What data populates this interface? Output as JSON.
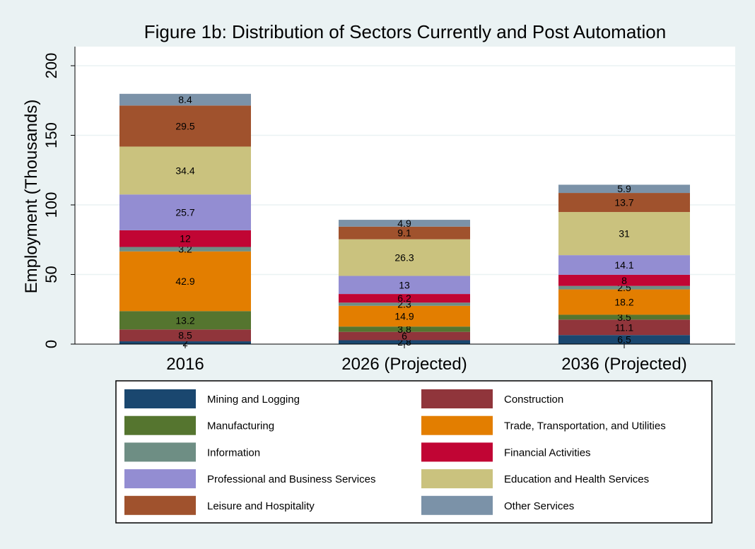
{
  "chart_data": {
    "type": "bar",
    "stacked": true,
    "title": "Figure 1b: Distribution of Sectors Currently and Post Automation",
    "ylabel": "Employment (Thousands)",
    "xlabel": "",
    "ylim": [
      0,
      200
    ],
    "yticks": [
      0,
      50,
      100,
      150,
      200
    ],
    "grid": true,
    "legend_position": "bottom",
    "categories": [
      "2016",
      "2026 (Projected)",
      "2036 (Projected)"
    ],
    "series": [
      {
        "name": "Mining and Logging",
        "color": "#1a476f",
        "values": [
          2,
          2.8,
          6.5
        ],
        "labels": [
          "2",
          "2.8",
          "6.5"
        ]
      },
      {
        "name": "Construction",
        "color": "#90353b",
        "values": [
          8.5,
          6,
          11.1
        ],
        "labels": [
          "8.5",
          "6",
          "11.1"
        ]
      },
      {
        "name": "Manufacturing",
        "color": "#55752f",
        "values": [
          13.2,
          3.8,
          3.5
        ],
        "labels": [
          "13.2",
          "3.8",
          "3.5"
        ]
      },
      {
        "name": "Trade, Transportation, and Utilities",
        "color": "#e37e00",
        "values": [
          42.9,
          14.9,
          18.2
        ],
        "labels": [
          "42.9",
          "14.9",
          "18.2"
        ]
      },
      {
        "name": "Information",
        "color": "#6e8e84",
        "values": [
          3.2,
          2.3,
          2.5
        ],
        "labels": [
          "3.2",
          "2.3",
          "2.5"
        ]
      },
      {
        "name": "Financial Activities",
        "color": "#c10534",
        "values": [
          12,
          6.2,
          8
        ],
        "labels": [
          "12",
          "6.2",
          "8"
        ]
      },
      {
        "name": "Professional and Business Services",
        "color": "#938dd2",
        "values": [
          25.7,
          13,
          14.1
        ],
        "labels": [
          "25.7",
          "13",
          "14.1"
        ]
      },
      {
        "name": "Education and Health Services",
        "color": "#cac27e",
        "values": [
          34.4,
          26.3,
          31
        ],
        "labels": [
          "34.4",
          "26.3",
          "31"
        ]
      },
      {
        "name": "Leisure and Hospitality",
        "color": "#a0522d",
        "values": [
          29.5,
          9.1,
          13.7
        ],
        "labels": [
          "29.5",
          "9.1",
          "13.7"
        ]
      },
      {
        "name": "Other Services",
        "color": "#7b92a8",
        "values": [
          8.4,
          4.9,
          5.9
        ],
        "labels": [
          "8.4",
          "4.9",
          "5.9"
        ]
      }
    ]
  }
}
